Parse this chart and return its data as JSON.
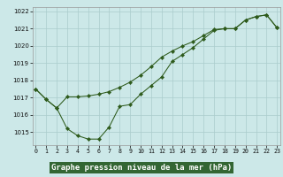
{
  "xlabel": "Graphe pression niveau de la mer (hPa)",
  "hours": [
    0,
    1,
    2,
    3,
    4,
    5,
    6,
    7,
    8,
    9,
    10,
    11,
    12,
    13,
    14,
    15,
    16,
    17,
    18,
    19,
    20,
    21,
    22,
    23
  ],
  "series1": [
    1017.5,
    1016.9,
    1016.4,
    1015.2,
    1014.8,
    1014.6,
    1014.6,
    1015.3,
    1016.5,
    1016.6,
    1017.2,
    1017.7,
    1018.2,
    1019.1,
    1019.5,
    1019.9,
    1020.4,
    1020.9,
    1021.0,
    1021.0,
    1021.5,
    1021.7,
    1021.8,
    1021.05
  ],
  "series2": [
    1017.5,
    1016.9,
    1016.4,
    1017.05,
    1017.05,
    1017.1,
    1017.2,
    1017.35,
    1017.6,
    1017.9,
    1018.3,
    1018.8,
    1019.35,
    1019.7,
    1020.0,
    1020.25,
    1020.6,
    1020.95,
    1021.0,
    1021.0,
    1021.5,
    1021.7,
    1021.8,
    1021.05
  ],
  "ylim_min": 1014.25,
  "ylim_max": 1022.25,
  "yticks": [
    1015,
    1016,
    1017,
    1018,
    1019,
    1020,
    1021,
    1022
  ],
  "bg_color": "#cce8e8",
  "grid_color": "#aacccc",
  "line_color": "#2d5a1b",
  "title_bg": "#336633",
  "title_fg": "#ffffff",
  "title_fontsize": 6.5,
  "tick_fontsize": 4.8,
  "ytick_fontsize": 5.0
}
